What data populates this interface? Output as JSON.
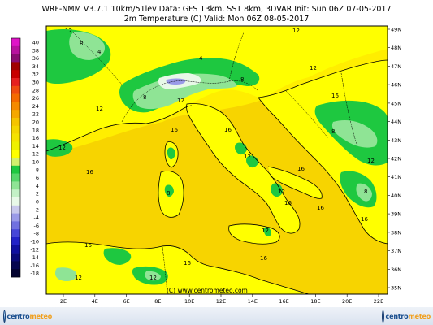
{
  "header": {
    "line1": "WRF-NMM V3.7.1 10km/51lev  Data: GFS 13km, SST 8km, 3DVAR  Init: Sun 06Z 07-05-2017",
    "line2": "2m Temperature (C)  Valid: Mon 06Z 08-05-2017"
  },
  "colorbar": {
    "labels": [
      "40",
      "38",
      "36",
      "34",
      "32",
      "30",
      "28",
      "26",
      "24",
      "22",
      "20",
      "18",
      "16",
      "14",
      "12",
      "10",
      "8",
      "6",
      "4",
      "2",
      "0",
      "-2",
      "-4",
      "-6",
      "-8",
      "-10",
      "-12",
      "-14",
      "-16",
      "-18"
    ],
    "colors": [
      "#e014c8",
      "#b8129f",
      "#8a0d72",
      "#a00000",
      "#c80000",
      "#e62020",
      "#f04b10",
      "#f56a00",
      "#f58a00",
      "#f5a800",
      "#f5c400",
      "#f5d600",
      "#f5e300",
      "#eef000",
      "#ffff00",
      "#d2f06e",
      "#1ec840",
      "#55d66a",
      "#8fe495",
      "#c3f0c6",
      "#e8f8e8",
      "#c8c8ec",
      "#9a9ae8",
      "#7070e0",
      "#4646d8",
      "#2222c8",
      "#1010a0",
      "#0a0a78",
      "#060650",
      "#030330"
    ]
  },
  "lat_labels": [
    "49N",
    "48N",
    "47N",
    "46N",
    "45N",
    "44N",
    "43N",
    "42N",
    "41N",
    "40N",
    "39N",
    "38N",
    "37N",
    "36N",
    "35N"
  ],
  "lon_labels": [
    "2E",
    "4E",
    "6E",
    "8E",
    "10E",
    "12E",
    "14E",
    "16E",
    "18E",
    "20E",
    "22E"
  ],
  "contour_labels": {
    "v4": "4",
    "v8": "8",
    "v12": "12",
    "v16": "16"
  },
  "credit": "(C) www.centrometeo.com",
  "logo": {
    "prefix": "centro",
    "suffix": "meteo"
  },
  "colors": {
    "warm_sea": "#f7d400",
    "land_yellow": "#ffff00",
    "land_green": "#1ec840",
    "light_green": "#8fe495",
    "alpine_white": "#e8f8e8",
    "alpine_blue": "#9a9ae8"
  }
}
